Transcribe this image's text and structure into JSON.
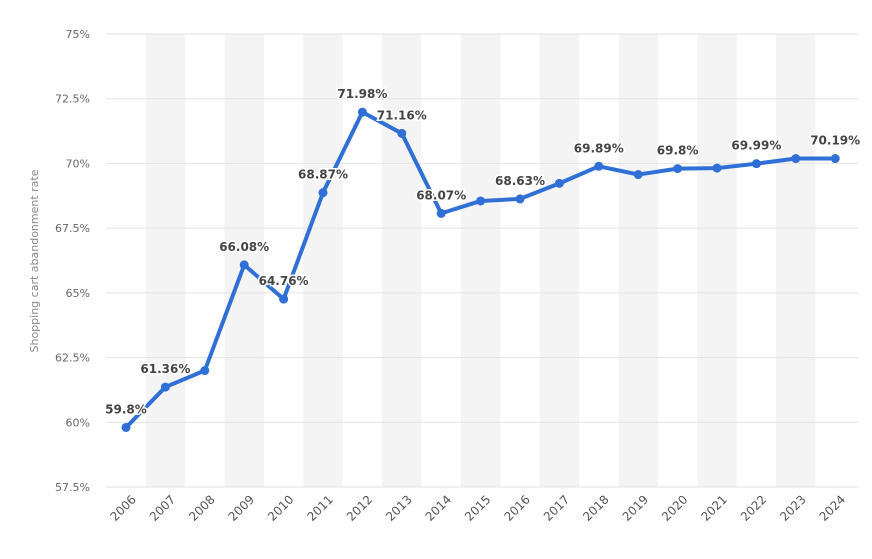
{
  "chart_data": {
    "type": "line",
    "title": "",
    "xlabel": "",
    "ylabel": "Shopping cart abandonment rate",
    "ylim": [
      57.5,
      75
    ],
    "y_ticks": [
      "57.5%",
      "60%",
      "62.5%",
      "65%",
      "67.5%",
      "70%",
      "72.5%",
      "75%"
    ],
    "y_tick_values": [
      57.5,
      60,
      62.5,
      65,
      67.5,
      70,
      72.5,
      75
    ],
    "grid": true,
    "legend": "none",
    "color": "#2f6fd6",
    "categories": [
      "2006",
      "2007",
      "2008",
      "2009",
      "2010",
      "2011",
      "2012",
      "2013",
      "2014",
      "2015",
      "2016",
      "2017",
      "2018",
      "2019",
      "2020",
      "2021",
      "2022",
      "2023",
      "2024"
    ],
    "series": [
      {
        "values": [
          59.8,
          61.36,
          62.0,
          66.08,
          64.76,
          68.87,
          71.98,
          71.16,
          68.07,
          68.55,
          68.63,
          69.23,
          69.89,
          69.57,
          69.8,
          69.82,
          69.99,
          70.19,
          70.19
        ]
      }
    ],
    "data_labels": [
      {
        "index": 0,
        "text": "59.8%"
      },
      {
        "index": 1,
        "text": "61.36%"
      },
      {
        "index": 3,
        "text": "66.08%"
      },
      {
        "index": 4,
        "text": "64.76%"
      },
      {
        "index": 5,
        "text": "68.87%"
      },
      {
        "index": 6,
        "text": "71.98%"
      },
      {
        "index": 7,
        "text": "71.16%"
      },
      {
        "index": 8,
        "text": "68.07%"
      },
      {
        "index": 10,
        "text": "68.63%"
      },
      {
        "index": 12,
        "text": "69.89%"
      },
      {
        "index": 14,
        "text": "69.8%"
      },
      {
        "index": 16,
        "text": "69.99%"
      },
      {
        "index": 18,
        "text": "70.19%"
      }
    ]
  }
}
